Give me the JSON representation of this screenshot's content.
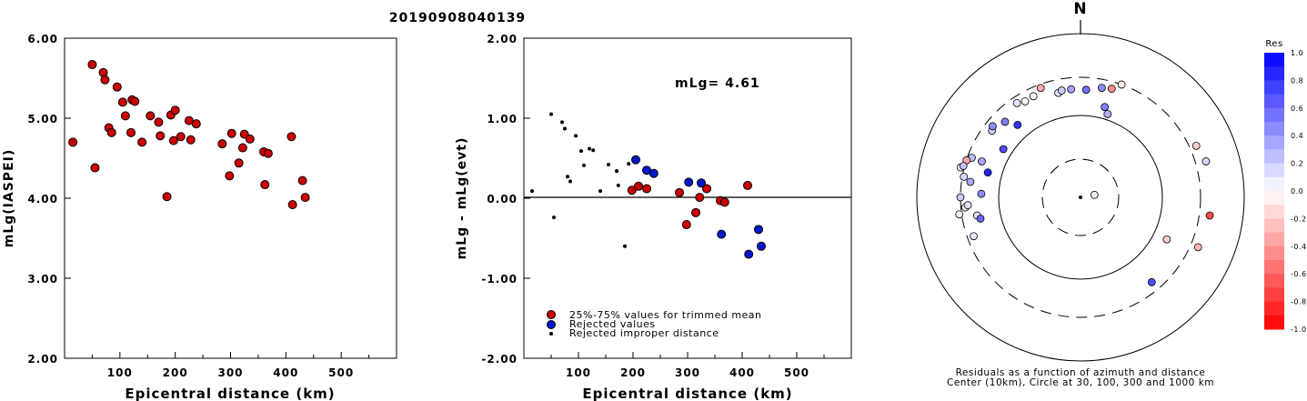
{
  "figure_title": "20190908040139",
  "chart_data": [
    {
      "type": "scatter",
      "id": "left",
      "title": "",
      "xlabel": "Epicentral distance (km)",
      "ylabel": "mLg(IASPEI)",
      "xlim": [
        0,
        600
      ],
      "ylim": [
        2.0,
        6.0
      ],
      "x_ticks": [
        "100",
        "200",
        "300",
        "400",
        "500"
      ],
      "y_ticks": [
        "2.00",
        "3.00",
        "4.00",
        "5.00",
        "6.00"
      ],
      "grid": false,
      "series": [
        {
          "color": "#cc0000",
          "points": [
            [
              15,
              4.7
            ],
            [
              50,
              5.67
            ],
            [
              55,
              4.38
            ],
            [
              70,
              5.57
            ],
            [
              73,
              5.48
            ],
            [
              80,
              4.88
            ],
            [
              85,
              4.82
            ],
            [
              95,
              5.39
            ],
            [
              105,
              5.2
            ],
            [
              110,
              5.03
            ],
            [
              120,
              4.82
            ],
            [
              122,
              5.23
            ],
            [
              127,
              5.21
            ],
            [
              140,
              4.7
            ],
            [
              155,
              5.03
            ],
            [
              170,
              4.95
            ],
            [
              173,
              4.78
            ],
            [
              185,
              4.02
            ],
            [
              192,
              5.04
            ],
            [
              197,
              4.72
            ],
            [
              200,
              5.1
            ],
            [
              210,
              4.77
            ],
            [
              225,
              4.97
            ],
            [
              228,
              4.73
            ],
            [
              238,
              4.93
            ],
            [
              285,
              4.68
            ],
            [
              298,
              4.28
            ],
            [
              302,
              4.81
            ],
            [
              315,
              4.44
            ],
            [
              322,
              4.63
            ],
            [
              325,
              4.8
            ],
            [
              335,
              4.74
            ],
            [
              360,
              4.58
            ],
            [
              362,
              4.17
            ],
            [
              368,
              4.56
            ],
            [
              410,
              4.77
            ],
            [
              412,
              3.92
            ],
            [
              430,
              4.22
            ],
            [
              435,
              4.01
            ]
          ]
        }
      ]
    },
    {
      "type": "scatter",
      "id": "middle",
      "title": "",
      "xlabel": "Epicentral distance (km)",
      "ylabel": "mLg - mLg(evt)",
      "xlim": [
        0,
        600
      ],
      "ylim": [
        -2.0,
        2.0
      ],
      "x_ticks": [
        "100",
        "200",
        "300",
        "400",
        "500"
      ],
      "y_ticks": [
        "-2.00",
        "-1.00",
        "0.00",
        "1.00",
        "2.00"
      ],
      "annotation": "mLg= 4.61",
      "grid": false,
      "zero_line": true,
      "legend": [
        {
          "label": "25%-75% values for trimmed mean",
          "marker": "red-circle"
        },
        {
          "label": "Rejected values",
          "marker": "blue-circle"
        },
        {
          "label": "Rejected improper distance",
          "marker": "small-dot"
        }
      ],
      "series": [
        {
          "name": "25%-75% values for trimmed mean",
          "color": "#cc0000",
          "points": [
            [
              198,
              0.1
            ],
            [
              210,
              0.15
            ],
            [
              225,
              0.12
            ],
            [
              285,
              0.07
            ],
            [
              298,
              -0.33
            ],
            [
              315,
              -0.18
            ],
            [
              322,
              0.01
            ],
            [
              335,
              0.12
            ],
            [
              360,
              -0.03
            ],
            [
              368,
              -0.05
            ],
            [
              410,
              0.16
            ]
          ]
        },
        {
          "name": "Rejected values",
          "color": "#0018cc",
          "points": [
            [
              205,
              0.48
            ],
            [
              225,
              0.35
            ],
            [
              238,
              0.31
            ],
            [
              302,
              0.2
            ],
            [
              325,
              0.19
            ],
            [
              362,
              -0.45
            ],
            [
              412,
              -0.7
            ],
            [
              430,
              -0.39
            ],
            [
              435,
              -0.6
            ]
          ]
        },
        {
          "name": "Rejected improper distance",
          "color": "#000000",
          "points": [
            [
              15,
              0.09
            ],
            [
              50,
              1.05
            ],
            [
              55,
              -0.24
            ],
            [
              70,
              0.95
            ],
            [
              75,
              0.87
            ],
            [
              80,
              0.27
            ],
            [
              85,
              0.21
            ],
            [
              95,
              0.78
            ],
            [
              105,
              0.59
            ],
            [
              110,
              0.41
            ],
            [
              120,
              0.62
            ],
            [
              127,
              0.6
            ],
            [
              140,
              0.09
            ],
            [
              155,
              0.42
            ],
            [
              170,
              0.34
            ],
            [
              173,
              0.16
            ],
            [
              185,
              -0.6
            ],
            [
              192,
              0.43
            ]
          ]
        }
      ]
    },
    {
      "type": "scatter",
      "id": "polar",
      "title": "N",
      "caption_line1": "Residuals as a function of azimuth and distance",
      "caption_line2": "Center (10km), Circle at 30, 100, 300 and 1000 km",
      "rings_km": [
        30,
        100,
        300,
        1000
      ],
      "colorbar": {
        "title": "Res",
        "labels": [
          "1.0",
          "0.8",
          "0.6",
          "0.4",
          "0.2",
          "0.0",
          "-0.2",
          "-0.4",
          "-0.6",
          "-0.8",
          "-1.0"
        ],
        "min": -1.0,
        "max": 1.0,
        "positive_color": "#0000ff",
        "negative_color": "#ff0000"
      },
      "points_azimuth_deg_distance_km_residual": [
        [
          80,
          15,
          0.05
        ],
        [
          116,
          150,
          -0.2
        ],
        [
          140,
          230,
          0.7
        ],
        [
          113,
          370,
          -0.3
        ],
        [
          98,
          400,
          -0.7
        ],
        [
          74,
          400,
          0.16
        ],
        [
          66,
          360,
          -0.2
        ],
        [
          16,
          245,
          -0.45
        ],
        [
          20,
          300,
          -0.1
        ],
        [
          340,
          270,
          -0.33
        ],
        [
          335,
          235,
          0.05
        ],
        [
          330,
          230,
          0.0
        ],
        [
          348,
          205,
          0.1
        ],
        [
          350,
          215,
          0.2
        ],
        [
          355,
          215,
          0.35
        ],
        [
          3,
          210,
          0.55
        ],
        [
          15,
          140,
          0.5
        ],
        [
          18,
          118,
          0.3
        ],
        [
          11,
          235,
          0.45
        ],
        [
          326,
          250,
          0.1
        ],
        [
          315,
          205,
          0.5
        ],
        [
          307,
          230,
          0.2
        ],
        [
          309,
          245,
          0.45
        ],
        [
          319,
          150,
          0.8
        ],
        [
          302,
          130,
          0.7
        ],
        [
          290,
          195,
          0.35
        ],
        [
          290,
          265,
          0.25
        ],
        [
          288,
          298,
          -0.35
        ],
        [
          284,
          330,
          0.05
        ],
        [
          280,
          287,
          0.15
        ],
        [
          285,
          310,
          0.25
        ],
        [
          270,
          300,
          0.2
        ],
        [
          278,
          233,
          0.35
        ],
        [
          265,
          265,
          0.05
        ],
        [
          262,
          320,
          0.05
        ],
        [
          266,
          245,
          0.1
        ],
        [
          260,
          195,
          0.1
        ],
        [
          272,
          165,
          0.45
        ],
        [
          285,
          150,
          0.85
        ],
        [
          250,
          250,
          0.1
        ],
        [
          258,
          180,
          0.6
        ]
      ]
    }
  ]
}
